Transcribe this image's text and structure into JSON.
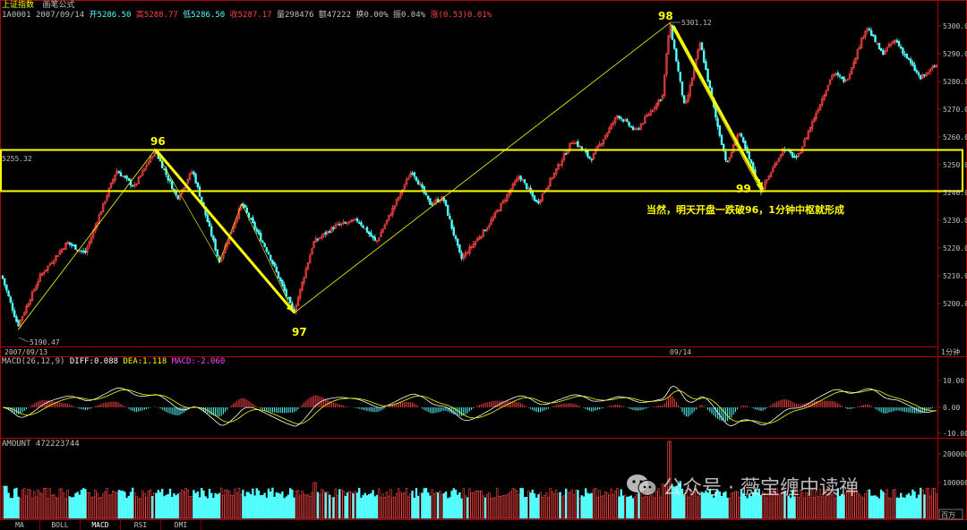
{
  "header": {
    "name": "上证指数",
    "formula": "画笔公式",
    "code": "1A0001",
    "date": "2007/09/14",
    "open": "开5286.50",
    "high": "高5288.77",
    "low": "低5286.50",
    "close": "收5287.17",
    "volume": "量298476",
    "amount": "额47222",
    "turnover": "换0.00%",
    "amplitude": "振0.04%",
    "change": "涨(0.53)0.01%"
  },
  "price_axis": {
    "ticks": [
      "5300.00",
      "5290.00",
      "5280.00",
      "5270.00",
      "5260.00",
      "5250.00",
      "5240.00",
      "5230.00",
      "5220.00",
      "5210.00",
      "5200.00"
    ]
  },
  "labels": {
    "box_top_price": "5255.32",
    "peak_price": "5301.12",
    "low_price": "5190.47",
    "p96": "96",
    "p97": "97",
    "p98": "98",
    "p99": "99",
    "annotation": "当然，明天开盘一跌破96，1分钟中枢就形成",
    "date_left": "2007/09/13",
    "date_mid": "09/14",
    "period": "1分钟"
  },
  "macd": {
    "title": "MACD(26,12,9)",
    "diff": "DIFF:0.088",
    "dea": "DEA:1.118",
    "macd": "MACD:-2.060",
    "ticks": [
      "10.00",
      "0.00",
      "-10.00"
    ]
  },
  "amount": {
    "title": "AMOUNT 472223744",
    "ticks": [
      "200000",
      "100000"
    ],
    "unit": "百万"
  },
  "tabs": [
    "MA",
    "BOLL",
    "MACD",
    "RSI",
    "DMI"
  ],
  "watermark": "公众号 · 薇宝缠中读禅",
  "colors": {
    "up": "#ff4444",
    "down": "#54ffff",
    "frame": "#b00000",
    "yellow": "#ffff00"
  },
  "chart_data": {
    "type": "line",
    "title": "上证指数",
    "x": [
      "2007/09/13",
      "09/14"
    ],
    "stroke_points": [
      {
        "label": "",
        "price": 5190.47
      },
      {
        "label": "96",
        "price": 5255.32
      },
      {
        "label": "97",
        "price": 5196.5
      },
      {
        "label": "98",
        "price": 5301.12
      },
      {
        "label": "99",
        "price": 5240.5
      }
    ],
    "box": {
      "top": 5255.32,
      "bottom": 5240.5
    },
    "ylim": [
      5189,
      5305
    ]
  }
}
